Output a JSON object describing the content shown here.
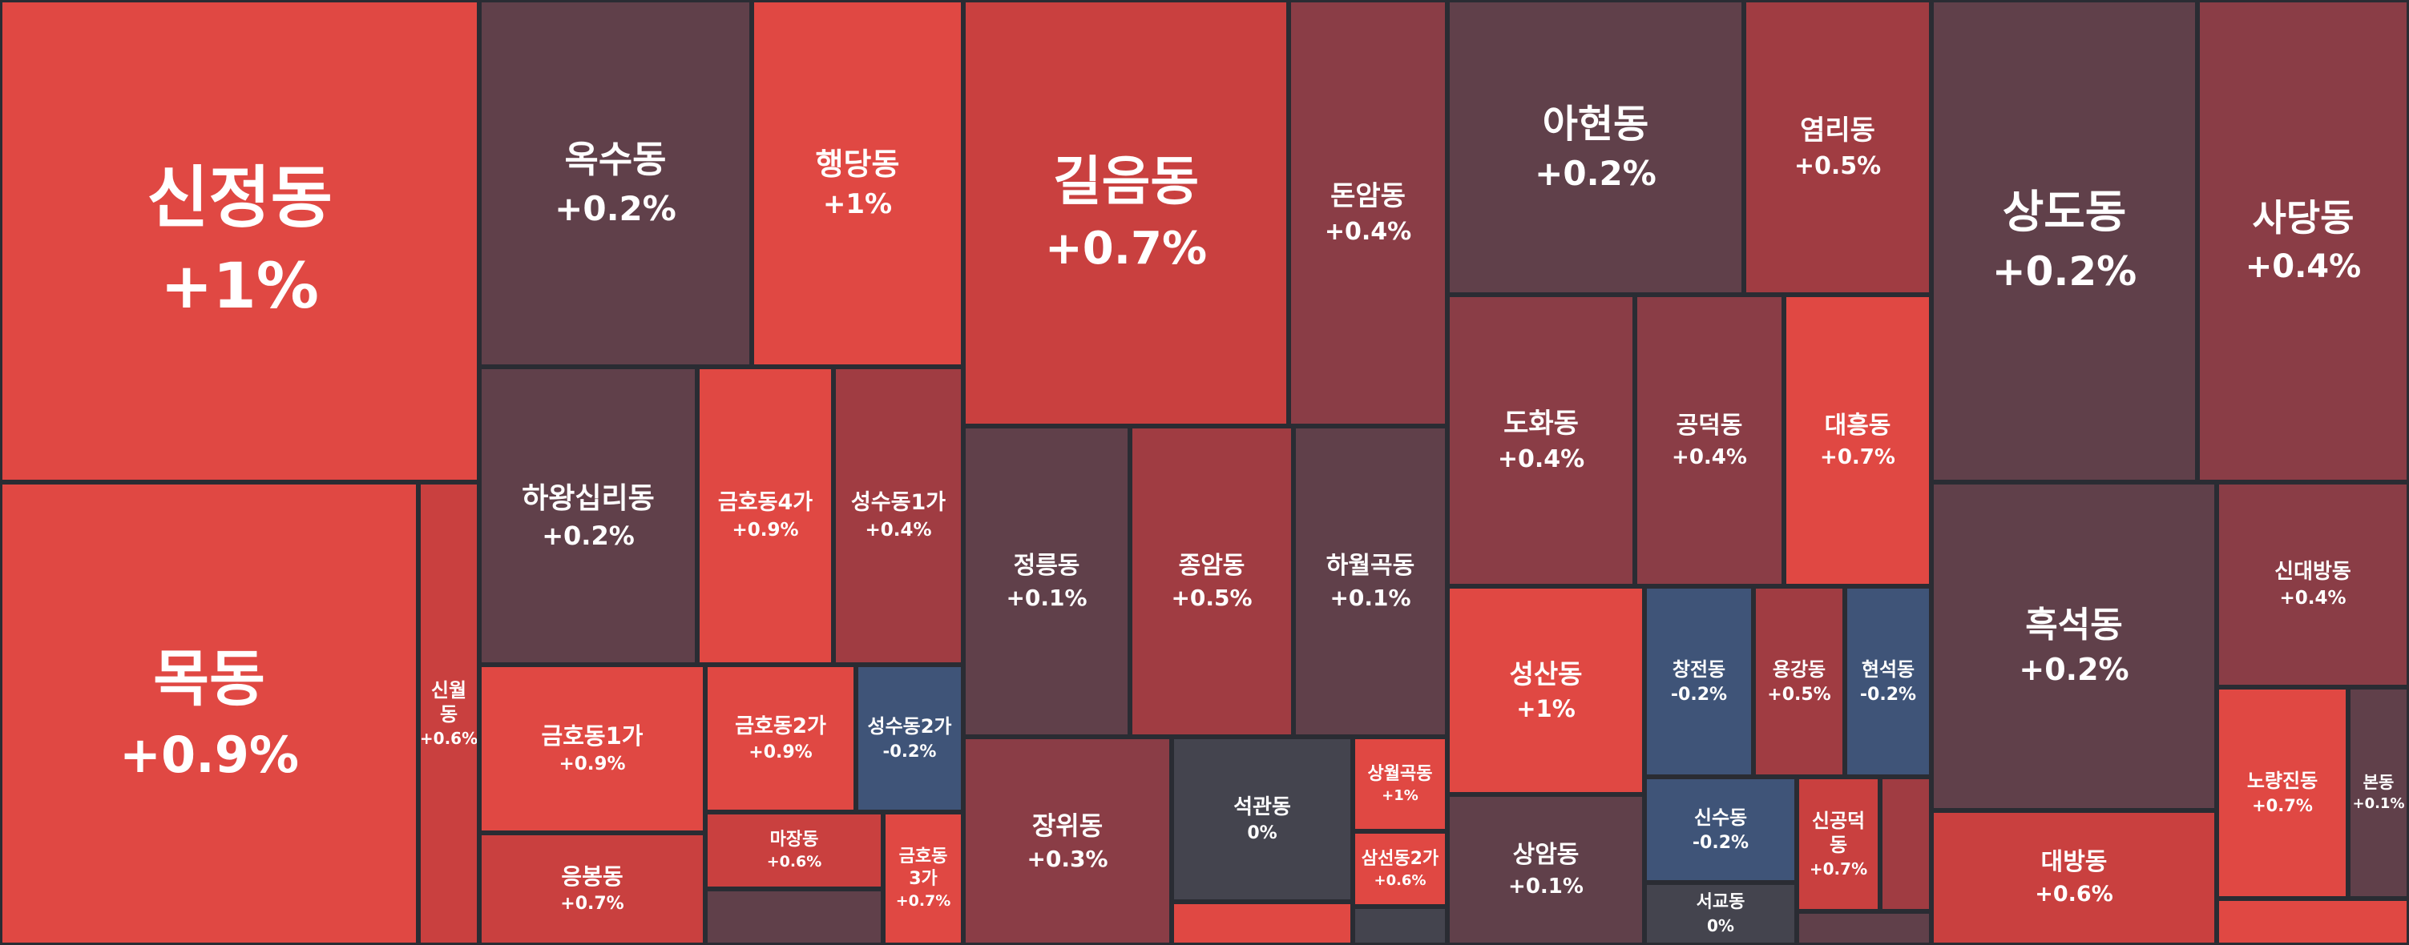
{
  "colors": {
    "up_strong": "#e04843",
    "up_medium": "#c9403f",
    "up_light": "#a03c42",
    "up_faint": "#8a3d46",
    "neutral_warm": "#60404a",
    "neutral": "#44444e",
    "down": "#3f5478",
    "border": "#2a2c33"
  },
  "chart_data": {
    "type": "treemap",
    "cells": [
      {
        "name": "신정동",
        "change": "+1%",
        "value": 1.0
      },
      {
        "name": "목동",
        "change": "+0.9%",
        "value": 0.9
      },
      {
        "name": "신월동",
        "change": "+0.6%",
        "value": 0.6
      },
      {
        "name": "옥수동",
        "change": "+0.2%",
        "value": 0.2
      },
      {
        "name": "행당동",
        "change": "+1%",
        "value": 1.0
      },
      {
        "name": "하왕십리동",
        "change": "+0.2%",
        "value": 0.2
      },
      {
        "name": "금호동4가",
        "change": "+0.9%",
        "value": 0.9
      },
      {
        "name": "성수동1가",
        "change": "+0.4%",
        "value": 0.4
      },
      {
        "name": "금호동1가",
        "change": "+0.9%",
        "value": 0.9
      },
      {
        "name": "금호동2가",
        "change": "+0.9%",
        "value": 0.9
      },
      {
        "name": "성수동2가",
        "change": "-0.2%",
        "value": -0.2
      },
      {
        "name": "응봉동",
        "change": "+0.7%",
        "value": 0.7
      },
      {
        "name": "마장동",
        "change": "+0.6%",
        "value": 0.6
      },
      {
        "name": "금호동3가",
        "change": "+0.7%",
        "value": 0.7
      },
      {
        "name": "",
        "change": "",
        "value": null
      },
      {
        "name": "길음동",
        "change": "+0.7%",
        "value": 0.7
      },
      {
        "name": "돈암동",
        "change": "+0.4%",
        "value": 0.4
      },
      {
        "name": "정릉동",
        "change": "+0.1%",
        "value": 0.1
      },
      {
        "name": "종암동",
        "change": "+0.5%",
        "value": 0.5
      },
      {
        "name": "하월곡동",
        "change": "+0.1%",
        "value": 0.1
      },
      {
        "name": "장위동",
        "change": "+0.3%",
        "value": 0.3
      },
      {
        "name": "석관동",
        "change": "0%",
        "value": 0.0
      },
      {
        "name": "상월곡동",
        "change": "+1%",
        "value": 1.0
      },
      {
        "name": "삼선동2가",
        "change": "+0.6%",
        "value": 0.6
      },
      {
        "name": "",
        "change": "",
        "value": null
      },
      {
        "name": "",
        "change": "",
        "value": null
      },
      {
        "name": "아현동",
        "change": "+0.2%",
        "value": 0.2
      },
      {
        "name": "염리동",
        "change": "+0.5%",
        "value": 0.5
      },
      {
        "name": "도화동",
        "change": "+0.4%",
        "value": 0.4
      },
      {
        "name": "공덕동",
        "change": "+0.4%",
        "value": 0.4
      },
      {
        "name": "대흥동",
        "change": "+0.7%",
        "value": 0.7
      },
      {
        "name": "성산동",
        "change": "+1%",
        "value": 1.0
      },
      {
        "name": "창전동",
        "change": "-0.2%",
        "value": -0.2
      },
      {
        "name": "용강동",
        "change": "+0.5%",
        "value": 0.5
      },
      {
        "name": "현석동",
        "change": "-0.2%",
        "value": -0.2
      },
      {
        "name": "상암동",
        "change": "+0.1%",
        "value": 0.1
      },
      {
        "name": "신수동",
        "change": "-0.2%",
        "value": -0.2
      },
      {
        "name": "신공덕동",
        "change": "+0.7%",
        "value": 0.7
      },
      {
        "name": "",
        "change": "",
        "value": null
      },
      {
        "name": "서교동",
        "change": "0%",
        "value": 0.0
      },
      {
        "name": "",
        "change": "",
        "value": null
      },
      {
        "name": "상도동",
        "change": "+0.2%",
        "value": 0.2
      },
      {
        "name": "사당동",
        "change": "+0.4%",
        "value": 0.4
      },
      {
        "name": "흑석동",
        "change": "+0.2%",
        "value": 0.2
      },
      {
        "name": "신대방동",
        "change": "+0.4%",
        "value": 0.4
      },
      {
        "name": "노량진동",
        "change": "+0.7%",
        "value": 0.7
      },
      {
        "name": "본동",
        "change": "+0.1%",
        "value": 0.1
      },
      {
        "name": "대방동",
        "change": "+0.6%",
        "value": 0.6
      },
      {
        "name": "",
        "change": "",
        "value": null
      }
    ]
  }
}
